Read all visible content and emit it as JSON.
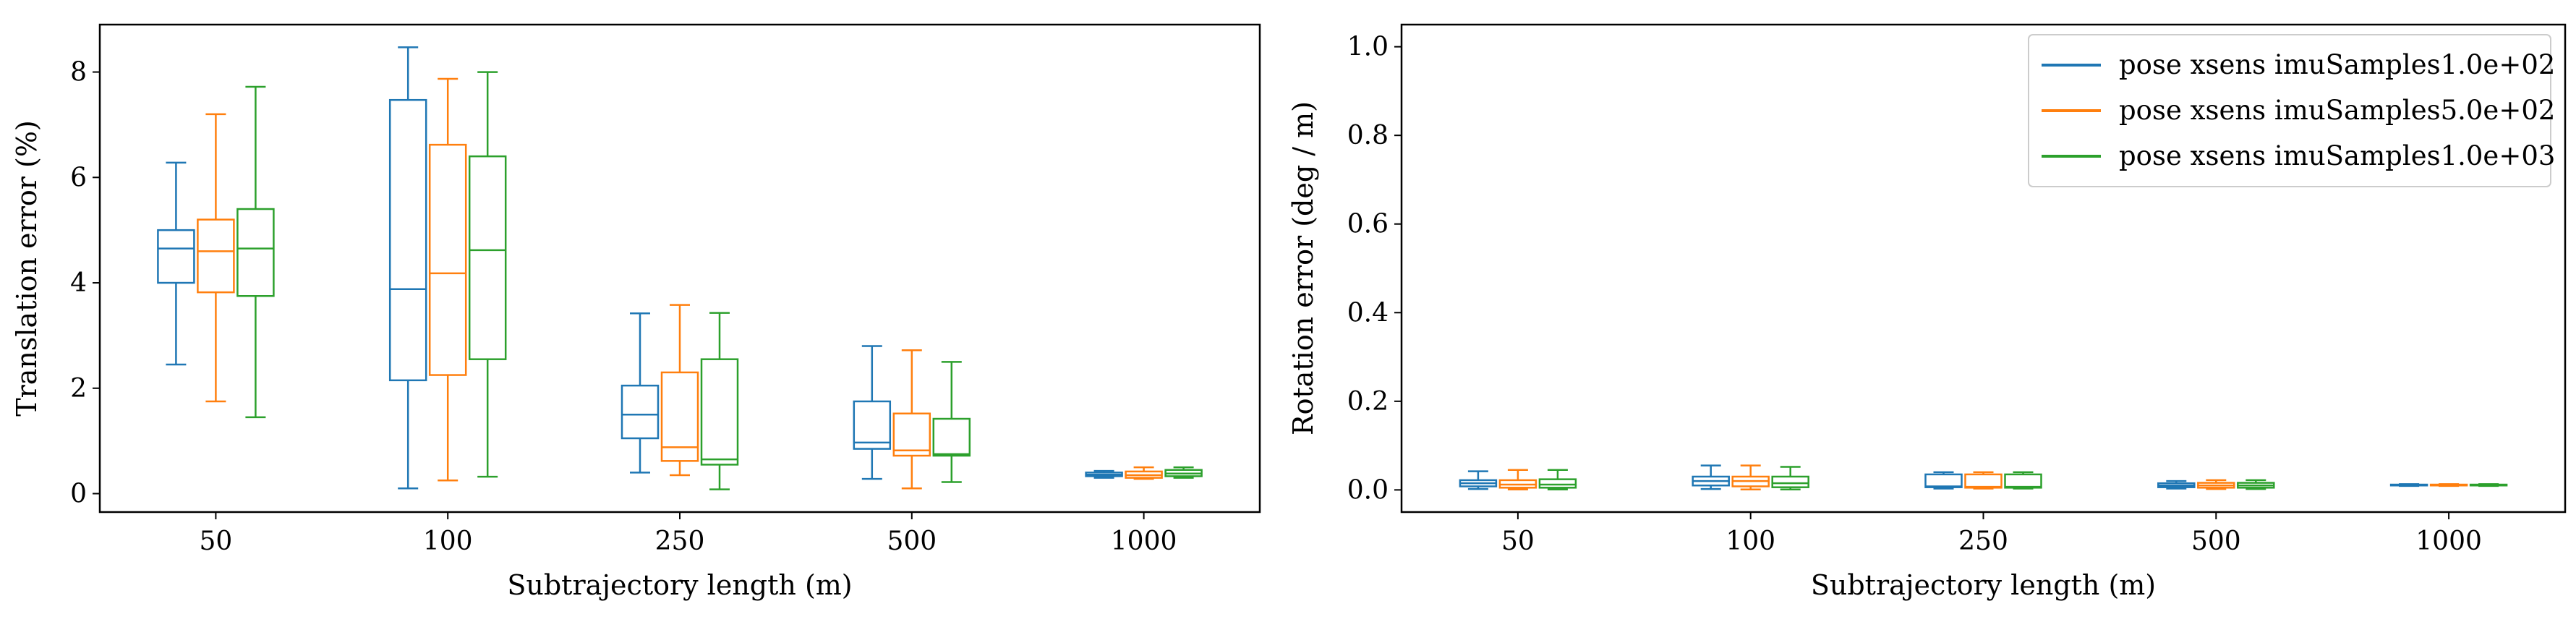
{
  "colors": {
    "series1": "#1f77b4",
    "series2": "#ff7f0e",
    "series3": "#2ca02c",
    "axis": "#000000",
    "background": "#ffffff"
  },
  "chart_data": [
    {
      "type": "box",
      "title": "",
      "xlabel": "Subtrajectory length (m)",
      "ylabel": "Translation error (%)",
      "categories": [
        "50",
        "100",
        "250",
        "500",
        "1000"
      ],
      "ylim": [
        -0.35,
        8.9
      ],
      "yticks": [
        0,
        2,
        4,
        6,
        8
      ],
      "grid": false,
      "legend": "none",
      "series": [
        {
          "name": "pose xsens imuSamples1.0e+02",
          "boxes": [
            {
              "whislo": 2.45,
              "q1": 4.0,
              "med": 4.65,
              "q3": 5.0,
              "whishi": 6.28
            },
            {
              "whislo": 0.1,
              "q1": 2.15,
              "med": 3.88,
              "q3": 7.47,
              "whishi": 8.47
            },
            {
              "whislo": 0.4,
              "q1": 1.05,
              "med": 1.5,
              "q3": 2.05,
              "whishi": 3.42
            },
            {
              "whislo": 0.28,
              "q1": 0.85,
              "med": 0.97,
              "q3": 1.75,
              "whishi": 2.8
            },
            {
              "whislo": 0.3,
              "q1": 0.33,
              "med": 0.36,
              "q3": 0.4,
              "whishi": 0.43
            }
          ]
        },
        {
          "name": "pose xsens imuSamples5.0e+02",
          "boxes": [
            {
              "whislo": 1.75,
              "q1": 3.82,
              "med": 4.6,
              "q3": 5.2,
              "whishi": 7.2
            },
            {
              "whislo": 0.25,
              "q1": 2.25,
              "med": 4.18,
              "q3": 6.62,
              "whishi": 7.87
            },
            {
              "whislo": 0.35,
              "q1": 0.62,
              "med": 0.88,
              "q3": 2.3,
              "whishi": 3.58
            },
            {
              "whislo": 0.1,
              "q1": 0.72,
              "med": 0.82,
              "q3": 1.52,
              "whishi": 2.72
            },
            {
              "whislo": 0.28,
              "q1": 0.3,
              "med": 0.35,
              "q3": 0.42,
              "whishi": 0.5
            }
          ]
        },
        {
          "name": "pose xsens imuSamples1.0e+03",
          "boxes": [
            {
              "whislo": 1.45,
              "q1": 3.75,
              "med": 4.65,
              "q3": 5.4,
              "whishi": 7.72
            },
            {
              "whislo": 0.32,
              "q1": 2.55,
              "med": 4.62,
              "q3": 6.4,
              "whishi": 8.0
            },
            {
              "whislo": 0.08,
              "q1": 0.55,
              "med": 0.65,
              "q3": 2.55,
              "whishi": 3.43
            },
            {
              "whislo": 0.22,
              "q1": 0.72,
              "med": 0.75,
              "q3": 1.42,
              "whishi": 2.5
            },
            {
              "whislo": 0.3,
              "q1": 0.33,
              "med": 0.38,
              "q3": 0.45,
              "whishi": 0.5
            }
          ]
        }
      ]
    },
    {
      "type": "box",
      "title": "",
      "xlabel": "Subtrajectory length (m)",
      "ylabel": "Rotation error (deg / m)",
      "categories": [
        "50",
        "100",
        "250",
        "500",
        "1000"
      ],
      "ylim": [
        -0.05,
        1.05
      ],
      "yticks": [
        0.0,
        0.2,
        0.4,
        0.6,
        0.8,
        1.0
      ],
      "ytick_labels": [
        "0.0",
        "0.2",
        "0.4",
        "0.6",
        "0.8",
        "1.0"
      ],
      "grid": false,
      "legend": "top-right",
      "series": [
        {
          "name": "pose xsens imuSamples1.0e+02",
          "boxes": [
            {
              "whislo": 0.002,
              "q1": 0.008,
              "med": 0.015,
              "q3": 0.022,
              "whishi": 0.042
            },
            {
              "whislo": 0.002,
              "q1": 0.01,
              "med": 0.02,
              "q3": 0.03,
              "whishi": 0.055
            },
            {
              "whislo": 0.003,
              "q1": 0.006,
              "med": 0.008,
              "q3": 0.035,
              "whishi": 0.04
            },
            {
              "whislo": 0.003,
              "q1": 0.006,
              "med": 0.01,
              "q3": 0.015,
              "whishi": 0.02
            },
            {
              "whislo": 0.009,
              "q1": 0.01,
              "med": 0.011,
              "q3": 0.012,
              "whishi": 0.013
            }
          ]
        },
        {
          "name": "pose xsens imuSamples5.0e+02",
          "boxes": [
            {
              "whislo": 0.001,
              "q1": 0.005,
              "med": 0.012,
              "q3": 0.022,
              "whishi": 0.045
            },
            {
              "whislo": 0.001,
              "q1": 0.008,
              "med": 0.02,
              "q3": 0.03,
              "whishi": 0.055
            },
            {
              "whislo": 0.003,
              "q1": 0.005,
              "med": 0.007,
              "q3": 0.035,
              "whishi": 0.04
            },
            {
              "whislo": 0.002,
              "q1": 0.005,
              "med": 0.01,
              "q3": 0.016,
              "whishi": 0.022
            },
            {
              "whislo": 0.009,
              "q1": 0.01,
              "med": 0.011,
              "q3": 0.012,
              "whishi": 0.013
            }
          ]
        },
        {
          "name": "pose xsens imuSamples1.0e+03",
          "boxes": [
            {
              "whislo": 0.001,
              "q1": 0.005,
              "med": 0.012,
              "q3": 0.024,
              "whishi": 0.045
            },
            {
              "whislo": 0.001,
              "q1": 0.006,
              "med": 0.015,
              "q3": 0.03,
              "whishi": 0.052
            },
            {
              "whislo": 0.003,
              "q1": 0.005,
              "med": 0.007,
              "q3": 0.035,
              "whishi": 0.04
            },
            {
              "whislo": 0.002,
              "q1": 0.005,
              "med": 0.01,
              "q3": 0.016,
              "whishi": 0.022
            },
            {
              "whislo": 0.009,
              "q1": 0.01,
              "med": 0.011,
              "q3": 0.012,
              "whishi": 0.013
            }
          ]
        }
      ]
    }
  ]
}
